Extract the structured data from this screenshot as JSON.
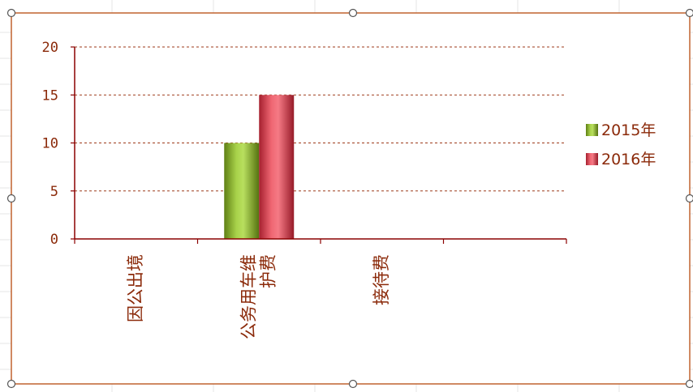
{
  "chart_data": {
    "type": "bar",
    "categories": [
      "因公出境",
      "公务用车维护费",
      "接待费",
      ""
    ],
    "category_label_lines": [
      [
        "因公出境"
      ],
      [
        "公务用车维",
        "护费"
      ],
      [
        "接待费"
      ],
      [
        ""
      ]
    ],
    "series": [
      {
        "name": "2015年",
        "values": [
          0,
          10,
          0,
          0
        ]
      },
      {
        "name": "2016年",
        "values": [
          0,
          15,
          0,
          0
        ]
      }
    ],
    "ylim": [
      0,
      20
    ],
    "yticks": [
      0,
      5,
      10,
      15,
      20
    ],
    "grid": true,
    "legend_position": "right",
    "title": "",
    "xlabel": "",
    "ylabel": ""
  },
  "colors": {
    "text": "#8b2a0a",
    "axis": "#8b0000",
    "grid": "#9e3a1a",
    "chart_border": "#c0622f",
    "sheet_grid": "#e6e6e6",
    "series_2015": "#8fbc2f",
    "series_2016": "#d9404e"
  },
  "icons": {
    "selection_handle": "selection-handle-icon"
  }
}
